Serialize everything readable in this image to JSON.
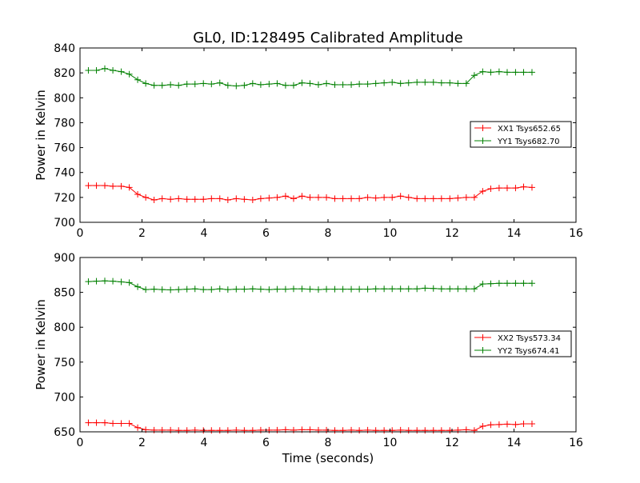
{
  "figure": {
    "title": "GL0, ID:128495 Calibrated Amplitude",
    "xlabel": "Time (seconds)"
  },
  "chart_data": [
    {
      "type": "line",
      "ylabel": "Power in Kelvin",
      "xlim": [
        0,
        16
      ],
      "ylim": [
        700,
        840
      ],
      "xticks": [
        0,
        2,
        4,
        6,
        8,
        10,
        12,
        14,
        16
      ],
      "yticks": [
        700,
        720,
        740,
        760,
        780,
        800,
        820,
        840
      ],
      "grid": false,
      "legend_position": "center-right",
      "x": [
        0.27,
        0.53,
        0.8,
        1.06,
        1.33,
        1.59,
        1.86,
        2.12,
        2.39,
        2.65,
        2.92,
        3.18,
        3.45,
        3.71,
        3.98,
        4.24,
        4.51,
        4.77,
        5.04,
        5.3,
        5.57,
        5.83,
        6.1,
        6.36,
        6.63,
        6.89,
        7.16,
        7.42,
        7.69,
        7.95,
        8.22,
        8.48,
        8.75,
        9.01,
        9.28,
        9.54,
        9.81,
        10.07,
        10.34,
        10.6,
        10.87,
        11.13,
        11.4,
        11.66,
        11.93,
        12.19,
        12.46,
        12.72,
        12.99,
        13.25,
        13.52,
        13.78,
        14.05,
        14.31,
        14.58
      ],
      "series": [
        {
          "name": "XX1 Tsys652.65",
          "color": "#ff0000",
          "values": [
            729.5,
            729.5,
            729.5,
            729,
            729,
            728,
            722.5,
            720,
            718,
            719,
            718.5,
            719,
            718.5,
            718.5,
            718.5,
            719,
            719,
            718,
            719,
            718.5,
            718,
            719,
            719.5,
            720,
            721,
            719,
            721,
            720,
            720,
            720,
            719,
            719,
            719,
            719,
            720,
            719.5,
            720,
            720,
            721,
            720,
            719,
            719,
            719,
            719,
            719,
            719.5,
            720,
            720,
            725,
            727,
            727.5,
            727.5,
            727.5,
            728.5,
            728
          ]
        },
        {
          "name": "YY1 Tsys682.70",
          "color": "#008000",
          "values": [
            822,
            822,
            823.5,
            822,
            821,
            819,
            814.5,
            811.5,
            810,
            810,
            810.5,
            810,
            811,
            811,
            811.5,
            811,
            812,
            810,
            809.5,
            810,
            811.5,
            810.5,
            811,
            811.5,
            810,
            810,
            812,
            811.5,
            810.5,
            811.5,
            810.5,
            810.5,
            810.5,
            811,
            811,
            811.5,
            812,
            812.5,
            811.5,
            812,
            812.5,
            812.5,
            812.5,
            812,
            812,
            811.5,
            811.5,
            818,
            821,
            820.5,
            821,
            820.5,
            820.5,
            820.5,
            820.5
          ]
        }
      ]
    },
    {
      "type": "line",
      "ylabel": "Power in Kelvin",
      "xlabel": "Time (seconds)",
      "xlim": [
        0,
        16
      ],
      "ylim": [
        650,
        900
      ],
      "xticks": [
        0,
        2,
        4,
        6,
        8,
        10,
        12,
        14,
        16
      ],
      "yticks": [
        650,
        700,
        750,
        800,
        850,
        900
      ],
      "grid": false,
      "legend_position": "center-right",
      "x": [
        0.27,
        0.53,
        0.8,
        1.06,
        1.33,
        1.59,
        1.86,
        2.12,
        2.39,
        2.65,
        2.92,
        3.18,
        3.45,
        3.71,
        3.98,
        4.24,
        4.51,
        4.77,
        5.04,
        5.3,
        5.57,
        5.83,
        6.1,
        6.36,
        6.63,
        6.89,
        7.16,
        7.42,
        7.69,
        7.95,
        8.22,
        8.48,
        8.75,
        9.01,
        9.28,
        9.54,
        9.81,
        10.07,
        10.34,
        10.6,
        10.87,
        11.13,
        11.4,
        11.66,
        11.93,
        12.19,
        12.46,
        12.72,
        12.99,
        13.25,
        13.52,
        13.78,
        14.05,
        14.31,
        14.58
      ],
      "series": [
        {
          "name": "XX2 Tsys573.34",
          "color": "#ff0000",
          "values": [
            663,
            663,
            663,
            662,
            662,
            662,
            656,
            653,
            652.5,
            652.5,
            652.5,
            652,
            652,
            652.5,
            652,
            652,
            652,
            652,
            652.5,
            652,
            652,
            652.5,
            652.5,
            652.5,
            653,
            652.5,
            653,
            653,
            652.5,
            652.5,
            652,
            652,
            652.5,
            652,
            652.5,
            652,
            652,
            652,
            652.5,
            652,
            652,
            652,
            652,
            652,
            652,
            652.5,
            653,
            652,
            658,
            660,
            660.5,
            661,
            660.5,
            661.5,
            661.5
          ]
        },
        {
          "name": "YY2 Tsys674.41",
          "color": "#008000",
          "values": [
            865.5,
            866,
            866.5,
            866,
            865,
            864,
            858,
            854,
            854.5,
            854,
            853.5,
            854,
            854.5,
            855,
            854,
            854,
            855,
            854,
            854.5,
            854.5,
            855,
            854.5,
            854,
            854.5,
            854.5,
            855,
            855,
            854.5,
            854,
            854.5,
            854.5,
            854.5,
            854.5,
            854.5,
            854.5,
            855,
            855,
            855,
            855,
            855,
            855,
            856,
            855.5,
            855,
            855,
            855,
            855,
            855,
            862,
            862.5,
            863,
            863,
            863,
            863,
            863
          ]
        }
      ]
    }
  ]
}
